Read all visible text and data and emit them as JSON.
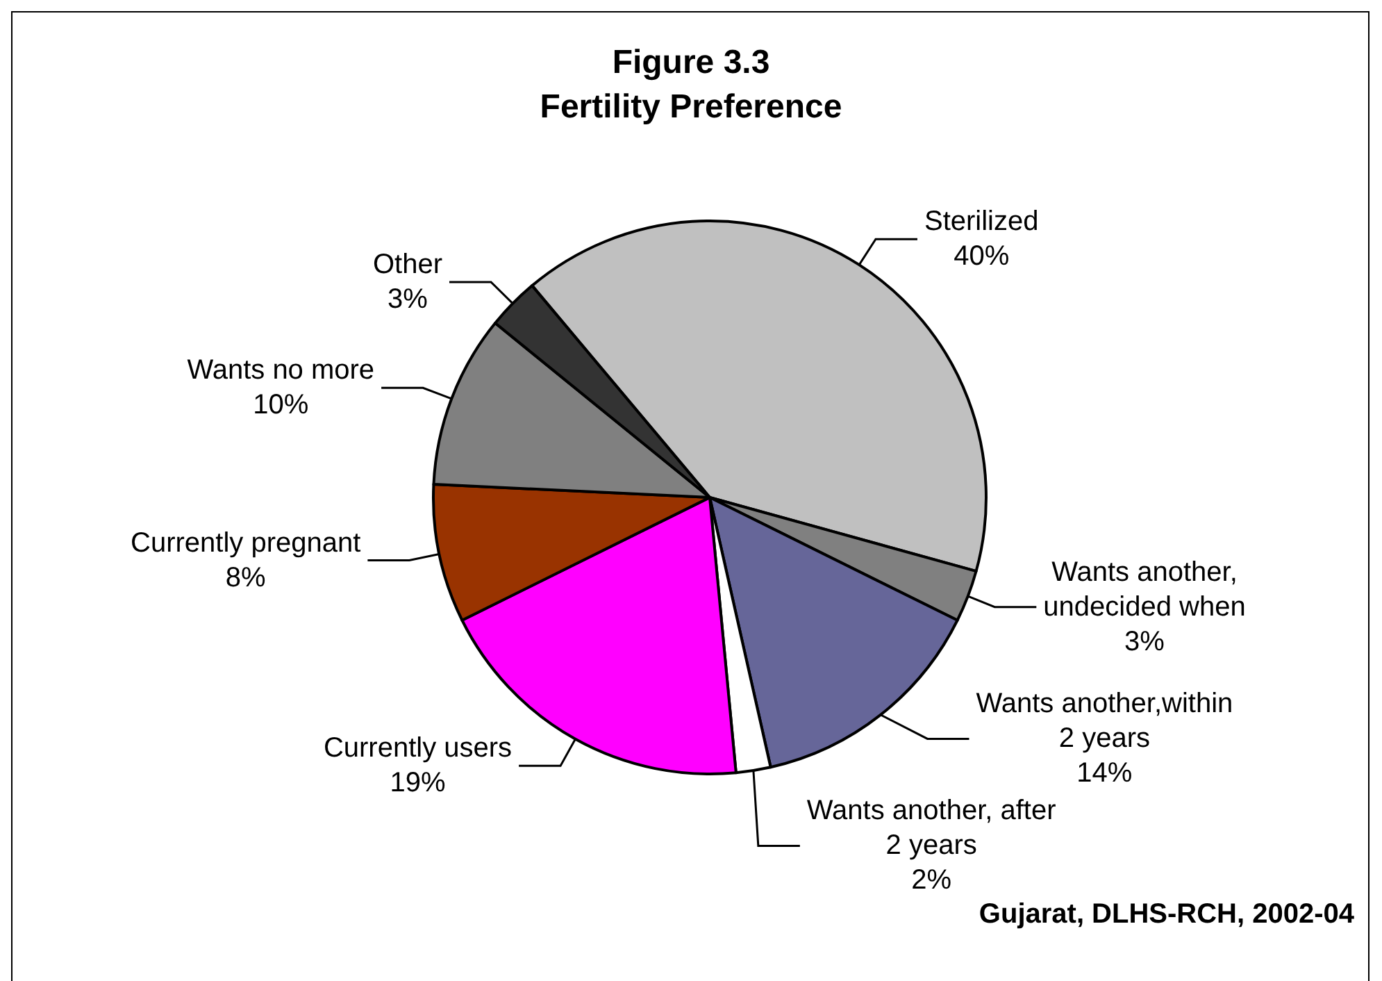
{
  "chart_data": {
    "type": "pie",
    "title": "Figure 3.3",
    "subtitle": "Fertility Preference",
    "categories": [
      "Sterilized",
      "Wants another, undecided when",
      "Wants another,within 2 years",
      "Wants another, after 2 years",
      "Currently users",
      "Currently pregnant",
      "Wants no more",
      "Other"
    ],
    "values": [
      40,
      3,
      14,
      2,
      19,
      8,
      10,
      3
    ],
    "value_labels": [
      "40%",
      "3%",
      "14%",
      "2%",
      "19%",
      "8%",
      "10%",
      "3%"
    ],
    "colors": [
      "#c0c0c0",
      "#808080",
      "#666699",
      "#ffffff",
      "#ff00ff",
      "#993300",
      "#808080",
      "#333333"
    ],
    "annotations": [
      "Gujarat, DLHS-RCH, 2002-04"
    ]
  }
}
